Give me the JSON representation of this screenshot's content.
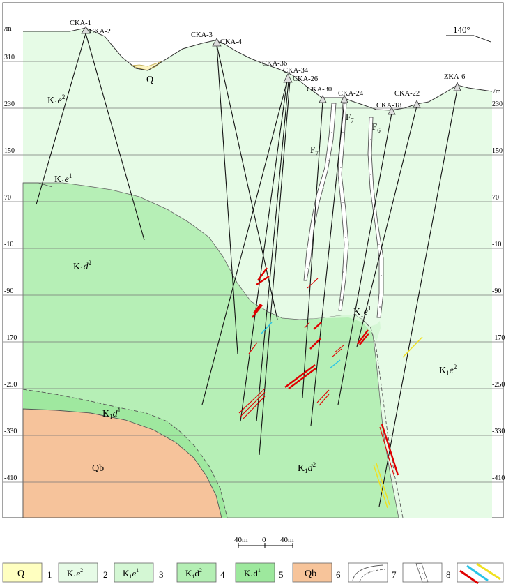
{
  "elevation_axis": {
    "unit": "m",
    "ticks": [
      "310",
      "230",
      "150",
      "70",
      "-10",
      "-90",
      "-170",
      "-250",
      "-330",
      "-410"
    ]
  },
  "direction_label": "140°",
  "boreholes": [
    "CKA-1",
    "CKA-2",
    "CKA-3",
    "CKA-4",
    "CKA-36",
    "CKA-34",
    "CKA-26",
    "CKA-30",
    "CKA-24",
    "CKA-18",
    "CKA-22",
    "ZKA-6"
  ],
  "faults": {
    "f7": "F",
    "f7_sub": "7",
    "f7prime": "F",
    "f7prime_sub": "7",
    "f7prime_mark": "′",
    "f6": "F",
    "f6_sub": "6"
  },
  "units": {
    "q": "Q",
    "k1e2_upper": {
      "base": "K",
      "sub": "1",
      "tail": "e",
      "sup": "2"
    },
    "k1e1_upper": {
      "base": "K",
      "sub": "1",
      "tail": "e",
      "sup": "1"
    },
    "k1d2_left": {
      "base": "K",
      "sub": "1",
      "tail": "d",
      "sup": "2"
    },
    "k1e1_mid": {
      "base": "K",
      "sub": "1",
      "tail": "e",
      "sup": "1"
    },
    "k1e2_right": {
      "base": "K",
      "sub": "1",
      "tail": "e",
      "sup": "2"
    },
    "k1d1": {
      "base": "K",
      "sub": "1",
      "tail": "d",
      "sup": "1"
    },
    "qb": "Qb",
    "k1d2_bottom": {
      "base": "K",
      "sub": "1",
      "tail": "d",
      "sup": "2"
    }
  },
  "scale_bar": {
    "left": "40m",
    "mid": "0",
    "right": "40m"
  },
  "legend": [
    {
      "num": "1",
      "label": "Q",
      "color": "#ffffc0"
    },
    {
      "num": "2",
      "label": {
        "base": "K",
        "sub": "1",
        "tail": "e",
        "sup": "2"
      },
      "color": "#e6fbe6"
    },
    {
      "num": "3",
      "label": {
        "base": "K",
        "sub": "1",
        "tail": "e",
        "sup": "1"
      },
      "color": "#d4f7d4"
    },
    {
      "num": "4",
      "label": {
        "base": "K",
        "sub": "1",
        "tail": "d",
        "sup": "2"
      },
      "color": "#b4efb4"
    },
    {
      "num": "5",
      "label": {
        "base": "K",
        "sub": "1",
        "tail": "d",
        "sup": "1"
      },
      "color": "#9de89d"
    },
    {
      "num": "6",
      "label": "Qb",
      "color": "#f7c49a"
    },
    {
      "num": "7",
      "label": "",
      "color": "#ffffff"
    },
    {
      "num": "8",
      "label": "",
      "color": "#ffffff"
    }
  ],
  "colors": {
    "q": "#fdf4c2",
    "k1e2": "#e6fbe6",
    "k1e1": "#d6f7d6",
    "k1d2": "#b6efb6",
    "k1d1": "#9fe89f",
    "qb": "#f6c39b",
    "ore_red": "#e00000",
    "ore_cyan": "#29c4e6",
    "ore_yellow": "#f0e020"
  }
}
